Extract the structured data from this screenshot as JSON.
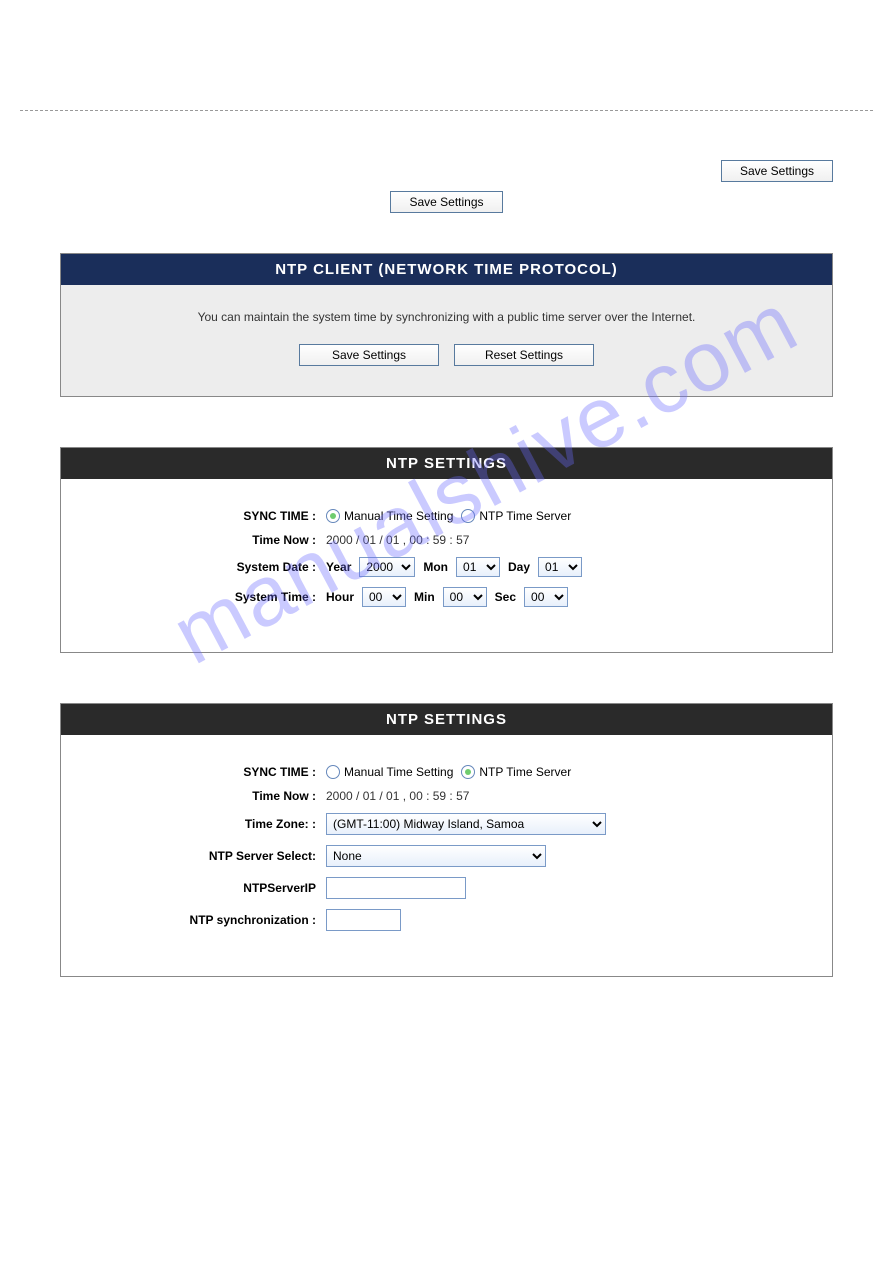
{
  "watermark": "manualshive.com",
  "buttons": {
    "save_top": "Save Settings",
    "save_center": "Save Settings",
    "save_panel": "Save Settings",
    "reset_panel": "Reset Settings"
  },
  "ntp_client": {
    "title": "NTP CLIENT (NETWORK TIME PROTOCOL)",
    "description": "You can maintain the system time by synchronizing with a public time server over the Internet."
  },
  "ntp_settings_manual": {
    "title": "NTP SETTINGS",
    "sync_time_label": "SYNC TIME :",
    "radio_manual": "Manual Time Setting",
    "radio_ntp": "NTP Time Server",
    "radio_selected": "manual",
    "time_now_label": "Time Now :",
    "time_now_value": "2000 / 01 / 01 , 00 : 59 : 57",
    "system_date_label": "System Date :",
    "year_label": "Year",
    "year_value": "2000",
    "mon_label": "Mon",
    "mon_value": "01",
    "day_label": "Day",
    "day_value": "01",
    "system_time_label": "System Time :",
    "hour_label": "Hour",
    "hour_value": "00",
    "min_label": "Min",
    "min_value": "00",
    "sec_label": "Sec",
    "sec_value": "00"
  },
  "ntp_settings_server": {
    "title": "NTP SETTINGS",
    "sync_time_label": "SYNC TIME :",
    "radio_manual": "Manual Time Setting",
    "radio_ntp": "NTP Time Server",
    "radio_selected": "ntp",
    "time_now_label": "Time Now :",
    "time_now_value": "2000 / 01 / 01 , 00 : 59 : 57",
    "timezone_label": "Time Zone: :",
    "timezone_value": "(GMT-11:00) Midway Island, Samoa",
    "server_select_label": "NTP Server Select:",
    "server_select_value": "None",
    "server_ip_label": "NTPServerIP",
    "server_ip_value": "",
    "sync_label": "NTP synchronization :",
    "sync_value": ""
  },
  "colors": {
    "navy_header_bg": "#1a2e5a",
    "dark_header_bg": "#2a2a2a",
    "panel_gray_bg": "#ededed",
    "button_border": "#587a9e",
    "input_border": "#7a9ac7",
    "radio_checked": "#6fcc6f",
    "watermark_color": "#6a6aff"
  }
}
